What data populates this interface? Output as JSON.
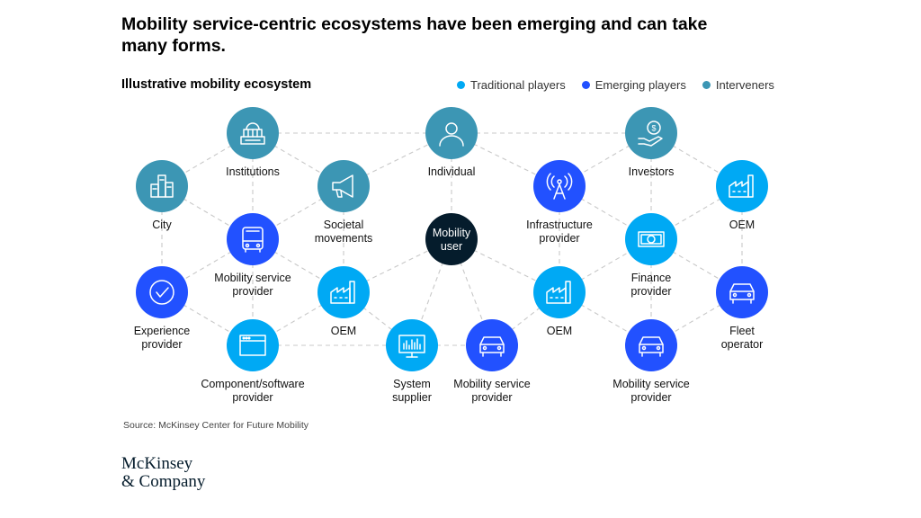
{
  "title": "Mobility service-centric ecosystems have been emerging and can take many forms.",
  "subtitle": "Illustrative mobility ecosystem",
  "legend": [
    {
      "label": "Traditional players",
      "color": "#00a9f4"
    },
    {
      "label": "Emerging players",
      "color": "#2251ff"
    },
    {
      "label": "Interveners",
      "color": "#3c96b4"
    }
  ],
  "nodes": [
    {
      "id": "institutions",
      "label": [
        "Institutions"
      ],
      "category": "interveners",
      "icon": "building-columns-icon"
    },
    {
      "id": "individual",
      "label": [
        "Individual"
      ],
      "category": "interveners",
      "icon": "person-icon"
    },
    {
      "id": "investors",
      "label": [
        "Investors"
      ],
      "category": "interveners",
      "icon": "hand-dollar-icon"
    },
    {
      "id": "city",
      "label": [
        "City"
      ],
      "category": "interveners",
      "icon": "city-buildings-icon"
    },
    {
      "id": "societal",
      "label": [
        "Societal",
        "movements"
      ],
      "category": "interveners",
      "icon": "megaphone-icon"
    },
    {
      "id": "infra",
      "label": [
        "Infrastructure",
        "provider"
      ],
      "category": "emerging",
      "icon": "antenna-tower-icon"
    },
    {
      "id": "oem-top",
      "label": [
        "OEM"
      ],
      "category": "traditional",
      "icon": "factory-icon"
    },
    {
      "id": "msp-bus",
      "label": [
        "Mobility service",
        "provider"
      ],
      "category": "emerging",
      "icon": "bus-icon"
    },
    {
      "id": "mobility-user",
      "label": [
        "Mobility",
        "user"
      ],
      "category": "center",
      "icon": ""
    },
    {
      "id": "finance",
      "label": [
        "Finance",
        "provider"
      ],
      "category": "traditional",
      "icon": "banknote-icon"
    },
    {
      "id": "experience",
      "label": [
        "Experience",
        "provider"
      ],
      "category": "emerging",
      "icon": "checkmark-icon"
    },
    {
      "id": "oem-left",
      "label": [
        "OEM"
      ],
      "category": "traditional",
      "icon": "factory-icon"
    },
    {
      "id": "oem-mid",
      "label": [
        "OEM"
      ],
      "category": "traditional",
      "icon": "factory-icon"
    },
    {
      "id": "fleet",
      "label": [
        "Fleet",
        "operator"
      ],
      "category": "emerging",
      "icon": "car-icon"
    },
    {
      "id": "component",
      "label": [
        "Component/software",
        "provider"
      ],
      "category": "traditional",
      "icon": "browser-window-icon"
    },
    {
      "id": "system",
      "label": [
        "System",
        "supplier"
      ],
      "category": "traditional",
      "icon": "monitor-chart-icon"
    },
    {
      "id": "msp-car-1",
      "label": [
        "Mobility service",
        "provider"
      ],
      "category": "emerging",
      "icon": "car-icon"
    },
    {
      "id": "msp-car-2",
      "label": [
        "Mobility service",
        "provider"
      ],
      "category": "emerging",
      "icon": "car-icon"
    }
  ],
  "edges": [
    [
      "institutions",
      "individual"
    ],
    [
      "individual",
      "investors"
    ],
    [
      "institutions",
      "city"
    ],
    [
      "institutions",
      "societal"
    ],
    [
      "institutions",
      "msp-bus"
    ],
    [
      "city",
      "msp-bus"
    ],
    [
      "city",
      "experience"
    ],
    [
      "societal",
      "msp-bus"
    ],
    [
      "societal",
      "oem-left"
    ],
    [
      "societal",
      "individual"
    ],
    [
      "individual",
      "mobility-user"
    ],
    [
      "individual",
      "infra"
    ],
    [
      "investors",
      "infra"
    ],
    [
      "investors",
      "oem-top"
    ],
    [
      "investors",
      "finance"
    ],
    [
      "infra",
      "finance"
    ],
    [
      "infra",
      "oem-mid"
    ],
    [
      "oem-top",
      "finance"
    ],
    [
      "oem-top",
      "fleet"
    ],
    [
      "msp-bus",
      "experience"
    ],
    [
      "msp-bus",
      "component"
    ],
    [
      "msp-bus",
      "oem-left"
    ],
    [
      "experience",
      "component"
    ],
    [
      "oem-left",
      "component"
    ],
    [
      "oem-left",
      "system"
    ],
    [
      "oem-left",
      "mobility-user"
    ],
    [
      "mobility-user",
      "system"
    ],
    [
      "mobility-user",
      "msp-car-1"
    ],
    [
      "mobility-user",
      "oem-mid"
    ],
    [
      "system",
      "msp-car-1"
    ],
    [
      "oem-mid",
      "msp-car-1"
    ],
    [
      "oem-mid",
      "msp-car-2"
    ],
    [
      "oem-mid",
      "finance"
    ],
    [
      "finance",
      "fleet"
    ],
    [
      "finance",
      "msp-car-2"
    ],
    [
      "fleet",
      "msp-car-2"
    ],
    [
      "component",
      "system"
    ]
  ],
  "source": "Source: McKinsey Center for Future Mobility",
  "logo": {
    "line1": "McKinsey",
    "line2": "& Company"
  }
}
